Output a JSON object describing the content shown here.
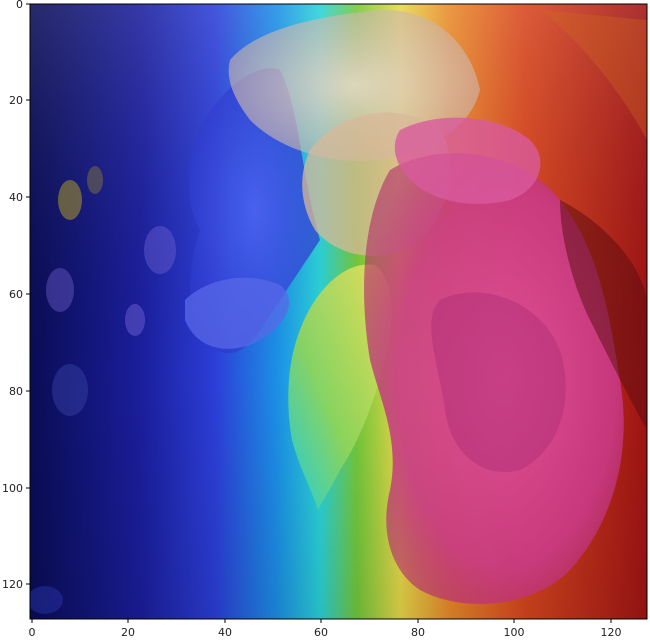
{
  "figure": {
    "description_kind": "heatmap-overlay",
    "colormap": "jet",
    "x_axis": {
      "range": [
        0,
        127
      ],
      "ticks": [
        "0",
        "20",
        "40",
        "60",
        "80",
        "100",
        "120"
      ]
    },
    "y_axis": {
      "range": [
        0,
        127
      ],
      "ticks": [
        "0",
        "20",
        "40",
        "60",
        "80",
        "100",
        "120"
      ]
    },
    "colors": {
      "deep_blue": "#0a0f6e",
      "blue": "#2d3cd6",
      "cyan": "#18c6e6",
      "green": "#6ac03a",
      "yellow": "#e8e04a",
      "orange": "#e07a22",
      "red": "#b01818",
      "magenta": "#d84a9a",
      "frame": "#000000"
    }
  }
}
